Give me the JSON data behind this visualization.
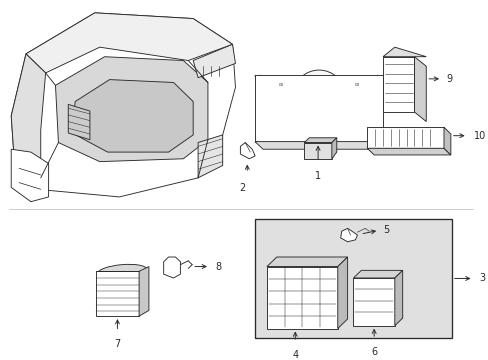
{
  "bg_color": "#ffffff",
  "line_color": "#2a2a2a",
  "box_bg": "#e0e0e0",
  "figsize": [
    4.89,
    3.6
  ],
  "dpi": 100,
  "lw": 0.65
}
